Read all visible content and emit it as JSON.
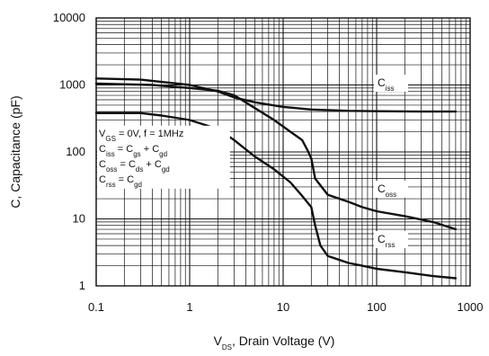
{
  "chart_data": {
    "type": "line",
    "xscale": "log",
    "yscale": "log",
    "xlim": [
      0.1,
      1000
    ],
    "ylim": [
      1,
      10000
    ],
    "grid": true,
    "xlabel": {
      "main": "V",
      "sub": "DS",
      "rest": ", Drain Voltage (V)"
    },
    "ylabel": "C, Capacitance (pF)",
    "xticks": [
      {
        "value": 0.1,
        "label": "0.1"
      },
      {
        "value": 1,
        "label": "1"
      },
      {
        "value": 10,
        "label": "10"
      },
      {
        "value": 100,
        "label": "100"
      },
      {
        "value": 1000,
        "label": "1000"
      }
    ],
    "yticks": [
      {
        "value": 1,
        "label": "1"
      },
      {
        "value": 10,
        "label": "10"
      },
      {
        "value": 100,
        "label": "100"
      },
      {
        "value": 1000,
        "label": "1000"
      },
      {
        "value": 10000,
        "label": "10000"
      }
    ],
    "series": [
      {
        "name": {
          "main": "C",
          "sub": "iss"
        },
        "x": [
          0.1,
          0.3,
          1,
          2,
          3,
          5,
          10,
          20,
          50,
          100,
          300,
          700
        ],
        "values": [
          1250,
          1200,
          1000,
          800,
          650,
          550,
          470,
          430,
          410,
          405,
          400,
          400
        ]
      },
      {
        "name": {
          "main": "C",
          "sub": "oss"
        },
        "x": [
          0.1,
          0.4,
          1,
          2,
          3,
          5,
          8,
          12,
          16,
          18,
          20,
          22,
          30,
          50,
          70,
          100,
          200,
          400,
          700
        ],
        "values": [
          1050,
          1000,
          900,
          820,
          700,
          450,
          300,
          200,
          150,
          110,
          80,
          40,
          23,
          18,
          15,
          13,
          11,
          9,
          7
        ]
      },
      {
        "name": {
          "main": "C",
          "sub": "rss"
        },
        "x": [
          0.1,
          0.3,
          0.5,
          1,
          2,
          3,
          5,
          8,
          12,
          16,
          18,
          20,
          22,
          25,
          30,
          50,
          70,
          100,
          200,
          400,
          700
        ],
        "values": [
          380,
          380,
          350,
          300,
          220,
          150,
          85,
          55,
          35,
          22,
          18,
          15,
          8,
          4,
          2.8,
          2.2,
          2.0,
          1.8,
          1.6,
          1.4,
          1.3
        ]
      }
    ],
    "annotation": {
      "lines": [
        [
          {
            "t": "V"
          },
          {
            "t": "GS",
            "sub": true
          },
          {
            "t": " = 0V, f = 1MHz"
          }
        ],
        [
          {
            "t": "C"
          },
          {
            "t": "iss",
            "sub": true
          },
          {
            "t": " = C"
          },
          {
            "t": "gs",
            "sub": true
          },
          {
            "t": " + C"
          },
          {
            "t": "gd",
            "sub": true
          }
        ],
        [
          {
            "t": "C"
          },
          {
            "t": "oss",
            "sub": true
          },
          {
            "t": " = C"
          },
          {
            "t": "ds",
            "sub": true
          },
          {
            "t": " + C"
          },
          {
            "t": "gd",
            "sub": true
          }
        ],
        [
          {
            "t": "C"
          },
          {
            "t": "rss",
            "sub": true
          },
          {
            "t": " = C"
          },
          {
            "t": "gd",
            "sub": true
          }
        ]
      ]
    }
  }
}
